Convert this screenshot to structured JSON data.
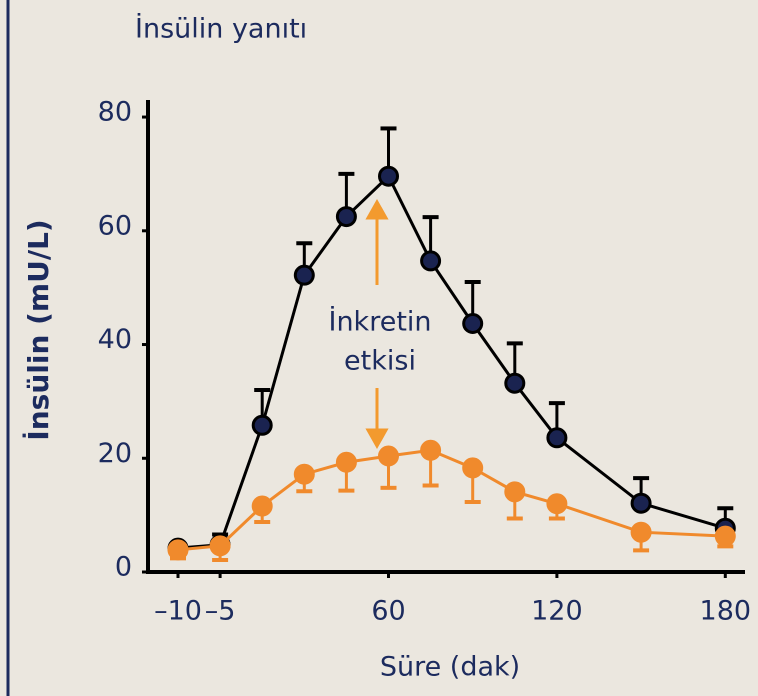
{
  "chart_data": {
    "type": "line",
    "title": "İnsülin yanıtı",
    "xlabel": "Süre (dak)",
    "ylabel": "İnsülin (mU/L)",
    "annotation": [
      "İnkretin",
      "etkisi"
    ],
    "x": [
      -10,
      -5,
      15,
      30,
      45,
      60,
      75,
      90,
      105,
      120,
      150,
      180
    ],
    "series": [
      {
        "color": "#000000",
        "error_side": "up",
        "values": [
          4.2,
          4.8,
          25.8,
          52.2,
          62.5,
          69.6,
          54.7,
          43.7,
          33.2,
          23.6,
          12.1,
          7.7
        ],
        "errors": [
          0,
          1.8,
          6.2,
          5.6,
          7.5,
          8.4,
          7.7,
          7.3,
          7,
          6.1,
          4.4,
          3.5
        ]
      },
      {
        "color": "#f08a2c",
        "error_side": "down",
        "values": [
          3.9,
          4.6,
          11.6,
          17.2,
          19.3,
          20.4,
          21.4,
          18.3,
          14.1,
          12,
          7,
          6.3
        ],
        "errors": [
          1.5,
          2.5,
          2.8,
          3,
          5,
          5.6,
          6.2,
          6,
          4.7,
          2.6,
          3.2,
          1.8
        ]
      }
    ],
    "xlim": [
      -10,
      180
    ],
    "xticks": [
      {
        "value": -10,
        "label": "–10"
      },
      {
        "value": -5,
        "label": "–5"
      },
      60,
      120,
      180
    ],
    "ylim": [
      0,
      83
    ],
    "yticks": [
      0,
      20,
      40,
      60,
      80
    ]
  }
}
